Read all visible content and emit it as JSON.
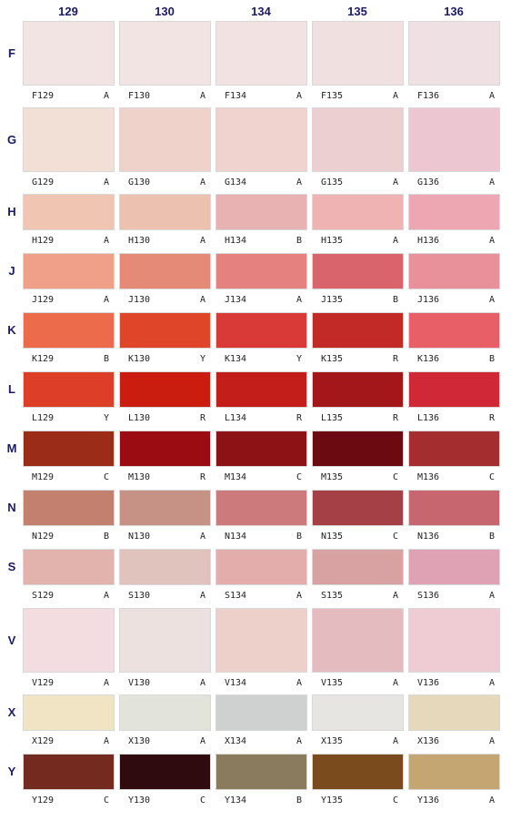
{
  "columns": [
    "129",
    "130",
    "134",
    "135",
    "136"
  ],
  "rows": [
    {
      "letter": "F",
      "cells": [
        {
          "code": "F129",
          "grade": "A",
          "color": "#f2e4e2"
        },
        {
          "code": "F130",
          "grade": "A",
          "color": "#f2e4e3"
        },
        {
          "code": "F134",
          "grade": "A",
          "color": "#f2e3e2"
        },
        {
          "code": "F135",
          "grade": "A",
          "color": "#f0e0df"
        },
        {
          "code": "F136",
          "grade": "A",
          "color": "#efe1e3"
        }
      ]
    },
    {
      "letter": "G",
      "cells": [
        {
          "code": "G129",
          "grade": "A",
          "color": "#f2dfd6"
        },
        {
          "code": "G130",
          "grade": "A",
          "color": "#efd3ca"
        },
        {
          "code": "G134",
          "grade": "A",
          "color": "#f0d3cf"
        },
        {
          "code": "G135",
          "grade": "A",
          "color": "#eccfd1"
        },
        {
          "code": "G136",
          "grade": "A",
          "color": "#ecc7d2"
        }
      ]
    },
    {
      "letter": "H",
      "cells": [
        {
          "code": "H129",
          "grade": "A",
          "color": "#f0c6b2"
        },
        {
          "code": "H130",
          "grade": "A",
          "color": "#ecc1b0"
        },
        {
          "code": "H134",
          "grade": "B",
          "color": "#e9b2b2"
        },
        {
          "code": "H135",
          "grade": "A",
          "color": "#efb3b4"
        },
        {
          "code": "H136",
          "grade": "A",
          "color": "#eca7b2"
        }
      ]
    },
    {
      "letter": "J",
      "cells": [
        {
          "code": "J129",
          "grade": "A",
          "color": "#f0a088"
        },
        {
          "code": "J130",
          "grade": "A",
          "color": "#e58a76"
        },
        {
          "code": "J134",
          "grade": "A",
          "color": "#e5817f"
        },
        {
          "code": "J135",
          "grade": "B",
          "color": "#d9646b"
        },
        {
          "code": "J136",
          "grade": "A",
          "color": "#e8919b"
        }
      ]
    },
    {
      "letter": "K",
      "cells": [
        {
          "code": "K129",
          "grade": "B",
          "color": "#ec6b4b"
        },
        {
          "code": "K130",
          "grade": "Y",
          "color": "#df4529"
        },
        {
          "code": "K134",
          "grade": "Y",
          "color": "#d93a37"
        },
        {
          "code": "K135",
          "grade": "R",
          "color": "#c22a27"
        },
        {
          "code": "K136",
          "grade": "B",
          "color": "#e95f67"
        }
      ]
    },
    {
      "letter": "L",
      "cells": [
        {
          "code": "L129",
          "grade": "Y",
          "color": "#dc3e28"
        },
        {
          "code": "L130",
          "grade": "R",
          "color": "#cb1c10"
        },
        {
          "code": "L134",
          "grade": "R",
          "color": "#c41e1a"
        },
        {
          "code": "L135",
          "grade": "R",
          "color": "#a3171a"
        },
        {
          "code": "L136",
          "grade": "R",
          "color": "#d02836"
        }
      ]
    },
    {
      "letter": "M",
      "cells": [
        {
          "code": "M129",
          "grade": "C",
          "color": "#9a2c18"
        },
        {
          "code": "M130",
          "grade": "R",
          "color": "#9a0c12"
        },
        {
          "code": "M134",
          "grade": "C",
          "color": "#8c1216"
        },
        {
          "code": "M135",
          "grade": "C",
          "color": "#6c0a12"
        },
        {
          "code": "M136",
          "grade": "C",
          "color": "#a42d30"
        }
      ]
    },
    {
      "letter": "N",
      "cells": [
        {
          "code": "N129",
          "grade": "B",
          "color": "#c4806e"
        },
        {
          "code": "N130",
          "grade": "A",
          "color": "#c79286"
        },
        {
          "code": "N134",
          "grade": "B",
          "color": "#cd7a7d"
        },
        {
          "code": "N135",
          "grade": "C",
          "color": "#a54046"
        },
        {
          "code": "N136",
          "grade": "B",
          "color": "#c86670"
        }
      ]
    },
    {
      "letter": "S",
      "cells": [
        {
          "code": "S129",
          "grade": "A",
          "color": "#e2b3ad"
        },
        {
          "code": "S130",
          "grade": "A",
          "color": "#e0c3bc"
        },
        {
          "code": "S134",
          "grade": "A",
          "color": "#e2adaa"
        },
        {
          "code": "S135",
          "grade": "A",
          "color": "#d9a2a2"
        },
        {
          "code": "S136",
          "grade": "A",
          "color": "#dea2b4"
        }
      ]
    },
    {
      "letter": "V",
      "cells": [
        {
          "code": "V129",
          "grade": "A",
          "color": "#f3dde0"
        },
        {
          "code": "V130",
          "grade": "A",
          "color": "#ece1df"
        },
        {
          "code": "V134",
          "grade": "A",
          "color": "#ecd0c9"
        },
        {
          "code": "V135",
          "grade": "A",
          "color": "#e4bcbf"
        },
        {
          "code": "V136",
          "grade": "A",
          "color": "#efcbd4"
        }
      ]
    },
    {
      "letter": "X",
      "cells": [
        {
          "code": "X129",
          "grade": "A",
          "color": "#f0e4c4"
        },
        {
          "code": "X130",
          "grade": "A",
          "color": "#e2e4dc"
        },
        {
          "code": "X134",
          "grade": "A",
          "color": "#cfd1d1"
        },
        {
          "code": "X135",
          "grade": "A",
          "color": "#e6e5e1"
        },
        {
          "code": "X136",
          "grade": "A",
          "color": "#e6d9bb"
        }
      ]
    },
    {
      "letter": "Y",
      "cells": [
        {
          "code": "Y129",
          "grade": "C",
          "color": "#752a1f"
        },
        {
          "code": "Y130",
          "grade": "C",
          "color": "#2f0b10"
        },
        {
          "code": "Y134",
          "grade": "B",
          "color": "#8b7b5e"
        },
        {
          "code": "Y135",
          "grade": "C",
          "color": "#7a4c1d"
        },
        {
          "code": "Y136",
          "grade": "A",
          "color": "#c4a672"
        }
      ]
    }
  ]
}
